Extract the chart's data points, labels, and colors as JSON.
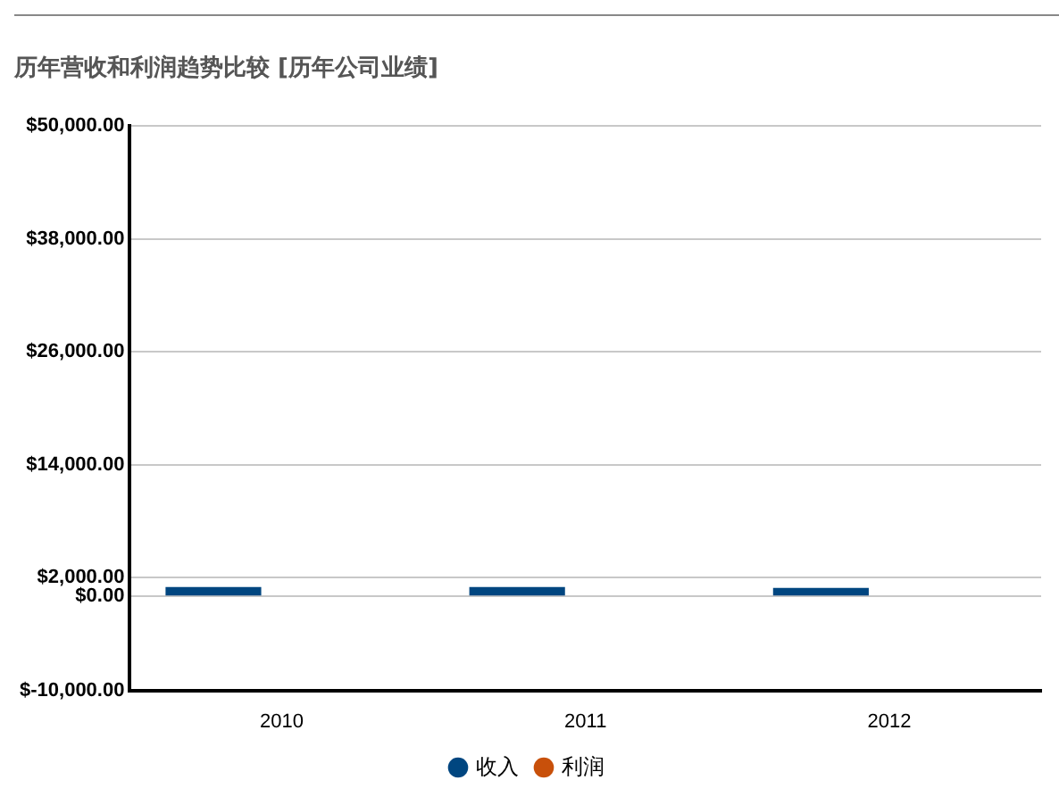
{
  "chart_data": {
    "type": "bar",
    "title": "历年营收和利润趋势比较 [历年公司业绩]",
    "categories": [
      "2010",
      "2011",
      "2012"
    ],
    "series": [
      {
        "name": "收入",
        "color": "#004680",
        "values": [
          1000,
          1000,
          900
        ]
      },
      {
        "name": "利润",
        "color": "#c8500a",
        "values": [
          0,
          0,
          0
        ]
      }
    ],
    "ylim": [
      -10000,
      50000
    ],
    "yticks": [
      {
        "value": -10000,
        "label": "$-10,000.00"
      },
      {
        "value": 0,
        "label": "$0.00"
      },
      {
        "value": 2000,
        "label": "$2,000.00"
      },
      {
        "value": 14000,
        "label": "$14,000.00"
      },
      {
        "value": 26000,
        "label": "$26,000.00"
      },
      {
        "value": 38000,
        "label": "$38,000.00"
      },
      {
        "value": 50000,
        "label": "$50,000.00"
      }
    ],
    "grid": "y",
    "legend": "bottom"
  }
}
